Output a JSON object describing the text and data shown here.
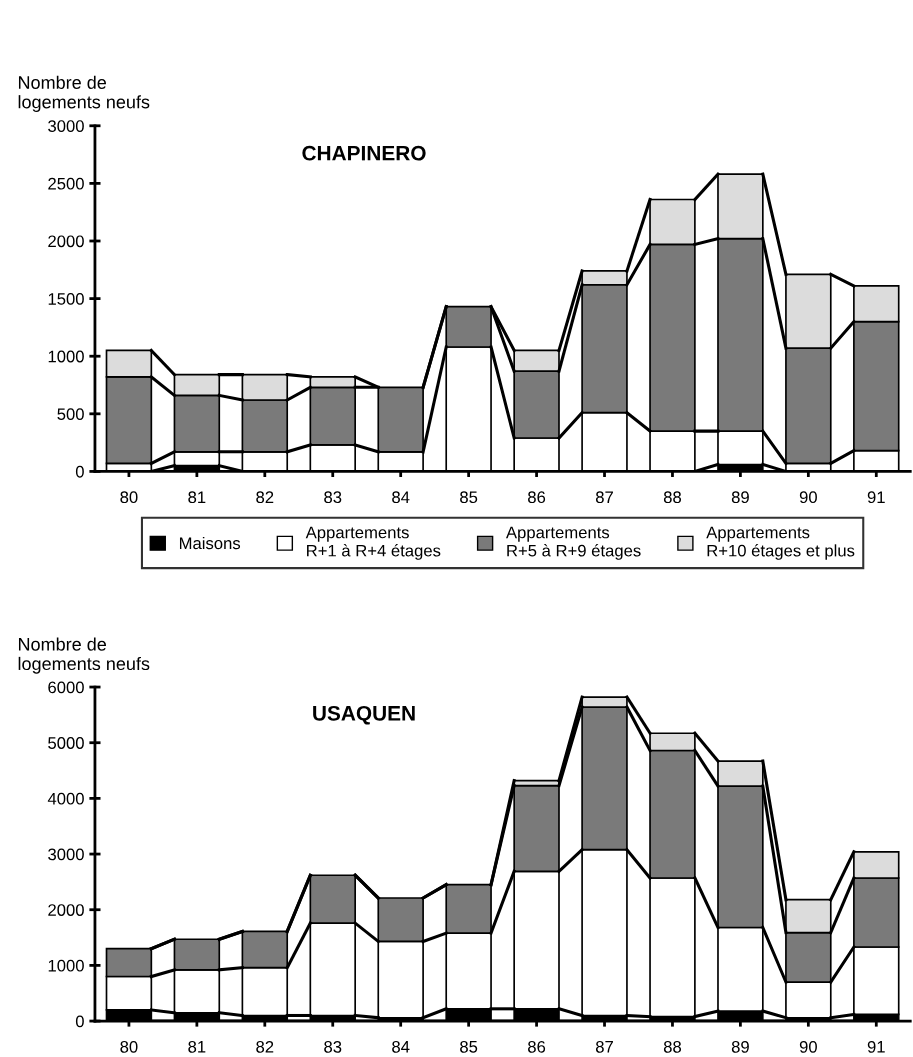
{
  "chart_data": [
    {
      "type": "bar",
      "stacked": true,
      "title": "CHAPINERO",
      "ylabel": "Nombre de\nlogements neufs",
      "categories": [
        "80",
        "81",
        "82",
        "83",
        "84",
        "85",
        "86",
        "87",
        "88",
        "89",
        "90",
        "91"
      ],
      "series": [
        {
          "name": "Maisons",
          "color": "#000000",
          "values": [
            0,
            50,
            0,
            0,
            0,
            0,
            0,
            0,
            0,
            60,
            0,
            0
          ]
        },
        {
          "name": "Appartements\nR+1 à R+4 étages",
          "color": "#ffffff",
          "values": [
            70,
            120,
            170,
            230,
            170,
            1080,
            290,
            510,
            350,
            290,
            70,
            180
          ]
        },
        {
          "name": "Appartements\nR+5 à R+9 étages",
          "color": "#7a7a7a",
          "values": [
            750,
            490,
            450,
            500,
            560,
            350,
            580,
            1110,
            1620,
            1670,
            1000,
            1120
          ]
        },
        {
          "name": "Appartements\nR+10 étages et plus",
          "color": "#dcdcdc",
          "values": [
            230,
            180,
            220,
            90,
            0,
            0,
            180,
            120,
            390,
            560,
            640,
            310
          ]
        }
      ],
      "ylim": [
        0,
        3000
      ],
      "yticks": [
        0,
        500,
        1000,
        1500,
        2000,
        2500,
        3000
      ],
      "grid": false,
      "legend": "bottom"
    },
    {
      "type": "bar",
      "stacked": true,
      "title": "USAQUEN",
      "ylabel": "Nombre de\nlogements neufs",
      "categories": [
        "80",
        "81",
        "82",
        "83",
        "84",
        "85",
        "86",
        "87",
        "88",
        "89",
        "90",
        "91"
      ],
      "series": [
        {
          "color": "#000000",
          "values": [
            200,
            150,
            100,
            100,
            60,
            220,
            220,
            100,
            80,
            180,
            60,
            120
          ]
        },
        {
          "color": "#ffffff",
          "values": [
            600,
            770,
            860,
            1660,
            1370,
            1360,
            2470,
            2980,
            2490,
            1500,
            640,
            1210
          ]
        },
        {
          "color": "#7a7a7a",
          "values": [
            500,
            550,
            650,
            860,
            780,
            870,
            1540,
            2560,
            2290,
            2540,
            890,
            1240
          ]
        },
        {
          "color": "#dcdcdc",
          "values": [
            0,
            0,
            0,
            0,
            0,
            0,
            90,
            180,
            310,
            450,
            590,
            470
          ]
        }
      ],
      "ylim": [
        0,
        6000
      ],
      "yticks": [
        0,
        1000,
        2000,
        3000,
        4000,
        5000,
        6000
      ],
      "grid": false,
      "legend": false
    }
  ]
}
